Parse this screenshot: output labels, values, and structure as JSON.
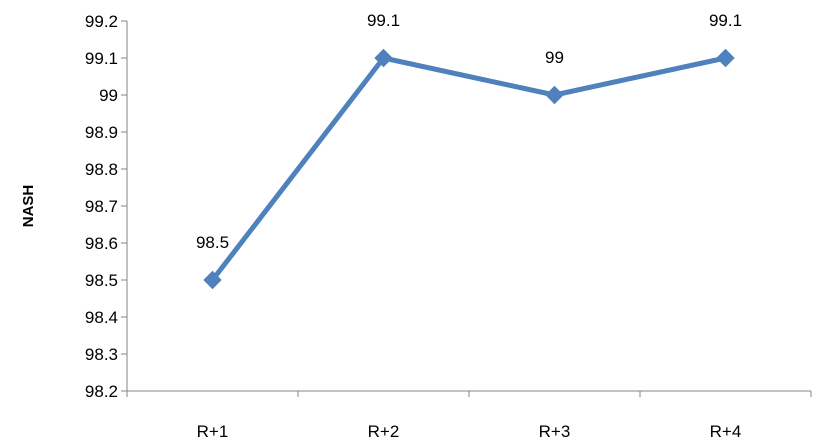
{
  "chart_data": {
    "type": "line",
    "categories": [
      "R+1",
      "R+2",
      "R+3",
      "R+4"
    ],
    "series": [
      {
        "values": [
          98.5,
          99.1,
          99,
          99.1
        ],
        "data_labels": [
          "98.5",
          "99.1",
          "99",
          "99.1"
        ],
        "color": "#4F81BD",
        "marker": "diamond"
      }
    ],
    "ylabel": "NASH",
    "xlabel": "",
    "ylim": [
      98.2,
      99.2
    ],
    "yticks": [
      "98.2",
      "98.3",
      "98.4",
      "98.5",
      "98.6",
      "98.7",
      "98.8",
      "98.9",
      "99",
      "99.1",
      "99.2"
    ],
    "grid": false,
    "legend": "none"
  }
}
